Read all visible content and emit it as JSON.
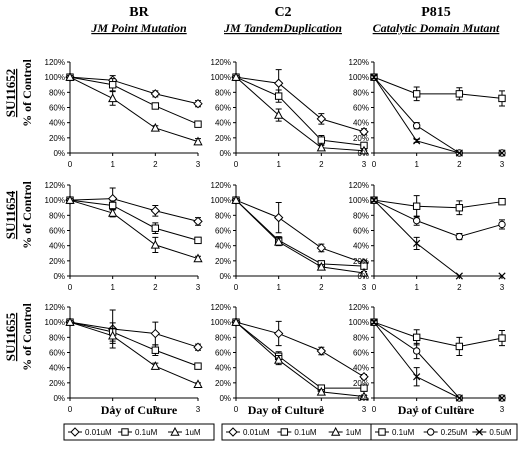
{
  "columns": [
    {
      "title": "BR",
      "subtitle": "JM Point Mutation"
    },
    {
      "title": "C2",
      "subtitle": "JM TandemDuplication"
    },
    {
      "title": "P815",
      "subtitle": "Catalytic Domain Mutant"
    }
  ],
  "rows": [
    {
      "drug": "SU11652",
      "ylabel": "% of Control"
    },
    {
      "drug": "SU11654",
      "ylabel": "% of Control"
    },
    {
      "drug": "SU11655",
      "ylabel": "% of Control"
    }
  ],
  "xlabel": "Day of Culture",
  "legends": [
    [
      "0.01uM",
      "0.1uM",
      "1uM"
    ],
    [
      "0.01uM",
      "0.1uM",
      "1uM"
    ],
    [
      "0.1uM",
      "0.25uM",
      "0.5uM"
    ]
  ],
  "chart_data": [
    {
      "type": "line",
      "row": 0,
      "col": 0,
      "x": [
        0,
        1,
        2,
        3
      ],
      "ylim": [
        0,
        120
      ],
      "xlim": [
        0,
        3
      ],
      "yticks": [
        "0%",
        "20%",
        "40%",
        "60%",
        "80%",
        "100%",
        "120%"
      ],
      "xticks": [
        "0",
        "1",
        "2",
        "3"
      ],
      "series": [
        {
          "name": "0.01uM",
          "marker": "diamond",
          "values": [
            100,
            96,
            78,
            65
          ],
          "err": [
            2,
            6,
            4,
            4
          ]
        },
        {
          "name": "0.1uM",
          "marker": "square",
          "values": [
            100,
            90,
            62,
            38
          ],
          "err": [
            2,
            8,
            4,
            3
          ]
        },
        {
          "name": "1uM",
          "marker": "triangle",
          "values": [
            100,
            72,
            33,
            15
          ],
          "err": [
            2,
            9,
            3,
            4
          ]
        }
      ]
    },
    {
      "type": "line",
      "row": 0,
      "col": 1,
      "x": [
        0,
        1,
        2,
        3
      ],
      "ylim": [
        0,
        120
      ],
      "xlim": [
        0,
        3
      ],
      "yticks": [
        "0%",
        "20%",
        "40%",
        "60%",
        "80%",
        "100%",
        "120%"
      ],
      "xticks": [
        "0",
        "1",
        "2",
        "3"
      ],
      "series": [
        {
          "name": "0.01uM",
          "marker": "diamond",
          "values": [
            100,
            92,
            45,
            28
          ],
          "err": [
            2,
            18,
            7,
            4
          ]
        },
        {
          "name": "0.1uM",
          "marker": "square",
          "values": [
            100,
            75,
            17,
            10
          ],
          "err": [
            2,
            8,
            6,
            3
          ]
        },
        {
          "name": "1uM",
          "marker": "triangle",
          "values": [
            100,
            50,
            7,
            3
          ],
          "err": [
            2,
            8,
            3,
            2
          ]
        }
      ]
    },
    {
      "type": "line",
      "row": 0,
      "col": 2,
      "x": [
        0,
        1,
        2,
        3
      ],
      "ylim": [
        0,
        120
      ],
      "xlim": [
        0,
        3
      ],
      "yticks": [
        "0%",
        "20%",
        "40%",
        "60%",
        "80%",
        "100%",
        "120%"
      ],
      "xticks": [
        "0",
        "1",
        "2",
        "3"
      ],
      "series": [
        {
          "name": "0.1uM",
          "marker": "square",
          "values": [
            100,
            78,
            78,
            72
          ],
          "err": [
            2,
            9,
            8,
            10
          ]
        },
        {
          "name": "0.25uM",
          "marker": "circle",
          "values": [
            100,
            36,
            0,
            0
          ],
          "err": [
            2,
            4,
            0,
            0
          ]
        },
        {
          "name": "0.5uM",
          "marker": "x",
          "values": [
            100,
            16,
            0,
            0
          ],
          "err": [
            2,
            2,
            0,
            0
          ]
        }
      ]
    },
    {
      "type": "line",
      "row": 1,
      "col": 0,
      "x": [
        0,
        1,
        2,
        3
      ],
      "ylim": [
        0,
        120
      ],
      "xlim": [
        0,
        3
      ],
      "yticks": [
        "0%",
        "20%",
        "40%",
        "60%",
        "80%",
        "100%",
        "120%"
      ],
      "xticks": [
        "0",
        "1",
        "2",
        "3"
      ],
      "series": [
        {
          "name": "0.01uM",
          "marker": "diamond",
          "values": [
            100,
            102,
            86,
            72
          ],
          "err": [
            2,
            14,
            7,
            5
          ]
        },
        {
          "name": "0.1uM",
          "marker": "square",
          "values": [
            100,
            93,
            63,
            47
          ],
          "err": [
            2,
            6,
            7,
            4
          ]
        },
        {
          "name": "1uM",
          "marker": "triangle",
          "values": [
            100,
            83,
            41,
            23
          ],
          "err": [
            2,
            5,
            10,
            3
          ]
        }
      ]
    },
    {
      "type": "line",
      "row": 1,
      "col": 1,
      "x": [
        0,
        1,
        2,
        3
      ],
      "ylim": [
        0,
        120
      ],
      "xlim": [
        0,
        3
      ],
      "yticks": [
        "0%",
        "20%",
        "40%",
        "60%",
        "80%",
        "100%",
        "120%"
      ],
      "xticks": [
        "0",
        "1",
        "2",
        "3"
      ],
      "series": [
        {
          "name": "0.01uM",
          "marker": "diamond",
          "values": [
            100,
            77,
            37,
            17
          ],
          "err": [
            2,
            20,
            5,
            4
          ]
        },
        {
          "name": "0.1uM",
          "marker": "square",
          "values": [
            100,
            47,
            16,
            13
          ],
          "err": [
            2,
            5,
            4,
            3
          ]
        },
        {
          "name": "1uM",
          "marker": "triangle",
          "values": [
            100,
            45,
            12,
            4
          ],
          "err": [
            2,
            5,
            3,
            2
          ]
        }
      ]
    },
    {
      "type": "line",
      "row": 1,
      "col": 2,
      "x": [
        0,
        1,
        2,
        3
      ],
      "ylim": [
        0,
        120
      ],
      "xlim": [
        0,
        3
      ],
      "yticks": [
        "0%",
        "20%",
        "40%",
        "60%",
        "80%",
        "100%",
        "120%"
      ],
      "xticks": [
        "0",
        "1",
        "2",
        "3"
      ],
      "series": [
        {
          "name": "0.1uM",
          "marker": "square",
          "values": [
            100,
            92,
            90,
            98
          ],
          "err": [
            2,
            14,
            9,
            3
          ]
        },
        {
          "name": "0.25uM",
          "marker": "circle",
          "values": [
            100,
            73,
            52,
            68
          ],
          "err": [
            2,
            6,
            4,
            6
          ]
        },
        {
          "name": "0.5uM",
          "marker": "x",
          "values": [
            100,
            43,
            0,
            0
          ],
          "err": [
            2,
            8,
            0,
            0
          ]
        }
      ]
    },
    {
      "type": "line",
      "row": 2,
      "col": 0,
      "x": [
        0,
        1,
        2,
        3
      ],
      "ylim": [
        0,
        120
      ],
      "xlim": [
        0,
        3
      ],
      "yticks": [
        "0%",
        "20%",
        "40%",
        "60%",
        "80%",
        "100%",
        "120%"
      ],
      "xticks": [
        "0",
        "1",
        "2",
        "3"
      ],
      "series": [
        {
          "name": "0.01uM",
          "marker": "diamond",
          "values": [
            100,
            91,
            85,
            67
          ],
          "err": [
            2,
            25,
            15,
            4
          ]
        },
        {
          "name": "0.1uM",
          "marker": "square",
          "values": [
            100,
            87,
            63,
            42
          ],
          "err": [
            2,
            12,
            7,
            3
          ]
        },
        {
          "name": "1uM",
          "marker": "triangle",
          "values": [
            100,
            82,
            42,
            18
          ],
          "err": [
            2,
            10,
            4,
            2
          ]
        }
      ]
    },
    {
      "type": "line",
      "row": 2,
      "col": 1,
      "x": [
        0,
        1,
        2,
        3
      ],
      "ylim": [
        0,
        120
      ],
      "xlim": [
        0,
        3
      ],
      "yticks": [
        "0%",
        "20%",
        "40%",
        "60%",
        "80%",
        "100%",
        "120%"
      ],
      "xticks": [
        "0",
        "1",
        "2",
        "3"
      ],
      "series": [
        {
          "name": "0.01uM",
          "marker": "diamond",
          "values": [
            100,
            85,
            62,
            28
          ],
          "err": [
            2,
            16,
            5,
            3
          ]
        },
        {
          "name": "0.1uM",
          "marker": "square",
          "values": [
            100,
            55,
            13,
            13
          ],
          "err": [
            2,
            6,
            3,
            4
          ]
        },
        {
          "name": "1uM",
          "marker": "triangle",
          "values": [
            100,
            50,
            8,
            2
          ],
          "err": [
            2,
            6,
            3,
            2
          ]
        }
      ]
    },
    {
      "type": "line",
      "row": 2,
      "col": 2,
      "x": [
        0,
        1,
        2,
        3
      ],
      "ylim": [
        0,
        120
      ],
      "xlim": [
        0,
        3
      ],
      "yticks": [
        "0%",
        "20%",
        "40%",
        "60%",
        "80%",
        "100%",
        "120%"
      ],
      "xticks": [
        "0",
        "1",
        "2",
        "3"
      ],
      "series": [
        {
          "name": "0.1uM",
          "marker": "square",
          "values": [
            100,
            80,
            68,
            79
          ],
          "err": [
            2,
            10,
            12,
            10
          ]
        },
        {
          "name": "0.25uM",
          "marker": "circle",
          "values": [
            100,
            62,
            0,
            0
          ],
          "err": [
            2,
            10,
            0,
            0
          ]
        },
        {
          "name": "0.5uM",
          "marker": "x",
          "values": [
            100,
            28,
            0,
            0
          ],
          "err": [
            2,
            12,
            0,
            0
          ]
        }
      ]
    }
  ]
}
